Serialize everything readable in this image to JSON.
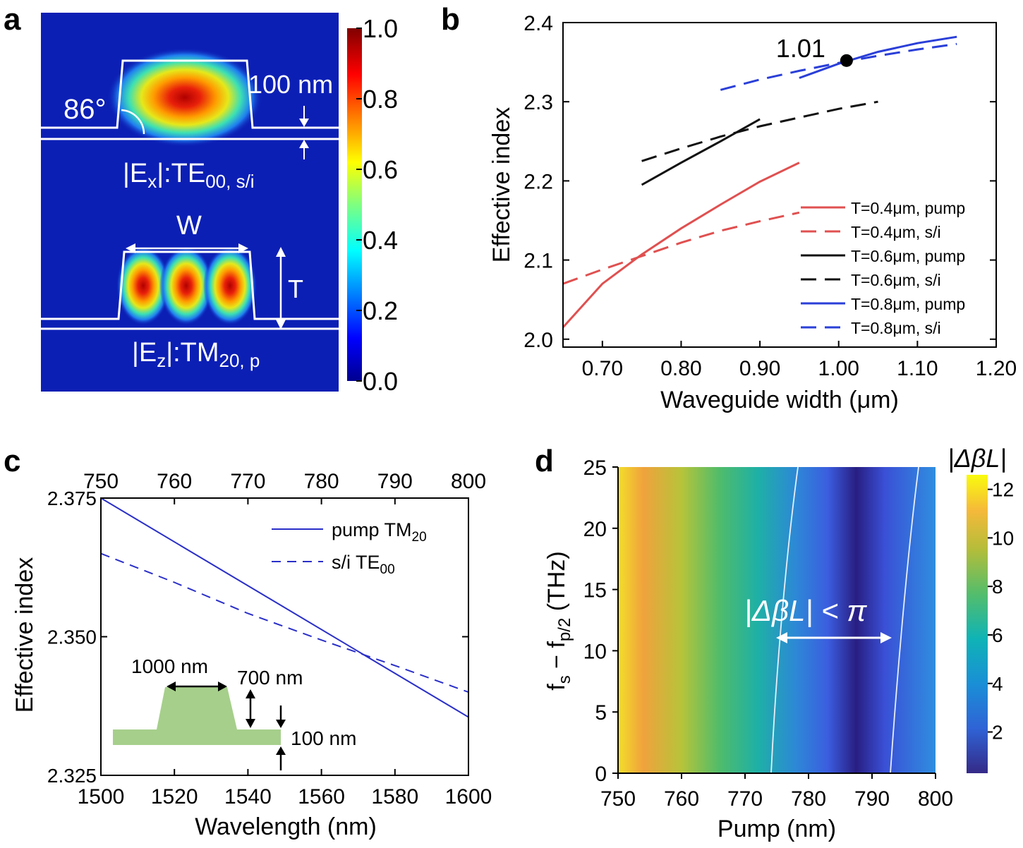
{
  "chart_data": [
    {
      "panel": "a",
      "type": "heatmap",
      "colorbar": {
        "ticks": [
          "1.0",
          "0.8",
          "0.6",
          "0.4",
          "0.2",
          "0.0"
        ],
        "range": [
          0,
          1
        ]
      },
      "annotations": {
        "angle": "86°",
        "film_thickness": "100 nm",
        "mode_top_main": "|E",
        "mode_top_sub": "x",
        "mode_top_rest": "|:TE",
        "mode_top_index": "00, s/i",
        "width_label": "W",
        "height_label": "T",
        "mode_bottom_main": "|E",
        "mode_bottom_sub": "z",
        "mode_bottom_rest": "|:TM",
        "mode_bottom_index": "20, p"
      }
    },
    {
      "panel": "b",
      "type": "line",
      "xlabel": "Waveguide width (μm)",
      "ylabel": "Effective index",
      "xlim": [
        0.65,
        1.2
      ],
      "ylim": [
        1.99,
        2.4
      ],
      "xticks": [
        "0.70",
        "0.80",
        "0.90",
        "1.00",
        "1.10",
        "1.20"
      ],
      "yticks": [
        "2.0",
        "2.1",
        "2.2",
        "2.3",
        "2.4"
      ],
      "marker": {
        "x": 1.01,
        "y": 2.352,
        "label": "1.01"
      },
      "series": [
        {
          "name": "T=0.4μm, pump",
          "color": "#e05050",
          "dash": false,
          "x": [
            0.65,
            0.7,
            0.75,
            0.8,
            0.85,
            0.9,
            0.95
          ],
          "y": [
            2.015,
            2.07,
            2.107,
            2.14,
            2.17,
            2.199,
            2.223
          ]
        },
        {
          "name": "T=0.4μm, s/i",
          "color": "#e05050",
          "dash": true,
          "x": [
            0.65,
            0.7,
            0.75,
            0.8,
            0.85,
            0.9,
            0.95
          ],
          "y": [
            2.07,
            2.088,
            2.105,
            2.122,
            2.137,
            2.149,
            2.16
          ]
        },
        {
          "name": "T=0.6μm, pump",
          "color": "#111111",
          "dash": false,
          "x": [
            0.75,
            0.8,
            0.85,
            0.9
          ],
          "y": [
            2.195,
            2.223,
            2.25,
            2.278
          ]
        },
        {
          "name": "T=0.6μm, s/i",
          "color": "#111111",
          "dash": true,
          "x": [
            0.75,
            0.8,
            0.85,
            0.9,
            0.95,
            1.0,
            1.05
          ],
          "y": [
            2.225,
            2.241,
            2.256,
            2.269,
            2.28,
            2.291,
            2.3
          ]
        },
        {
          "name": "T=0.8μm, pump",
          "color": "#2a3fd8",
          "dash": false,
          "x": [
            0.95,
            1.0,
            1.05,
            1.1,
            1.15
          ],
          "y": [
            2.33,
            2.348,
            2.363,
            2.374,
            2.382
          ]
        },
        {
          "name": "T=0.8μm, s/i",
          "color": "#2a3fd8",
          "dash": true,
          "x": [
            0.85,
            0.9,
            0.95,
            1.0,
            1.05,
            1.1,
            1.15
          ],
          "y": [
            2.315,
            2.328,
            2.339,
            2.349,
            2.358,
            2.366,
            2.373
          ]
        }
      ]
    },
    {
      "panel": "c",
      "type": "line",
      "xlabel": "Wavelength (nm)",
      "ylabel": "Effective index",
      "xlim": [
        1500,
        1600
      ],
      "ylim": [
        2.325,
        2.375
      ],
      "xticks": [
        "1500",
        "1520",
        "1540",
        "1560",
        "1580",
        "1600"
      ],
      "yticks": [
        "2.325",
        "2.350",
        "2.375"
      ],
      "top_xticks": [
        "750",
        "760",
        "770",
        "780",
        "790",
        "800"
      ],
      "series": [
        {
          "name": "pump TM",
          "sub": "20",
          "color": "#2a2fc8",
          "dash": false,
          "x": [
            1500,
            1600
          ],
          "y": [
            2.375,
            2.3355
          ]
        },
        {
          "name": "s/i TE",
          "sub": "00",
          "color": "#2a2fc8",
          "dash": true,
          "x": [
            1500,
            1520,
            1540,
            1560,
            1580,
            1600
          ],
          "y": [
            2.365,
            2.3598,
            2.3542,
            2.3494,
            2.3448,
            2.34
          ]
        }
      ],
      "inset": {
        "top_width": "1000 nm",
        "height": "700 nm",
        "slab": "100 nm",
        "color": "#a6cf8b"
      }
    },
    {
      "panel": "d",
      "type": "heatmap",
      "xlabel": "Pump (nm)",
      "ylabel_main": "f",
      "ylabel_s": "s",
      "ylabel_mid": " − f",
      "ylabel_p": "p/2",
      "ylabel_unit": " (THz)",
      "xlim": [
        750,
        800
      ],
      "ylim": [
        0,
        25
      ],
      "xticks": [
        "750",
        "760",
        "770",
        "780",
        "790",
        "800"
      ],
      "yticks": [
        "0",
        "5",
        "10",
        "15",
        "20",
        "25"
      ],
      "colorbar": {
        "title": "|ΔβL|",
        "ticks": [
          "12",
          "10",
          "8",
          "6",
          "4",
          "2"
        ]
      },
      "annotation": "|ΔβL| < π"
    }
  ],
  "panel_labels": {
    "a": "a",
    "b": "b",
    "c": "c",
    "d": "d"
  }
}
